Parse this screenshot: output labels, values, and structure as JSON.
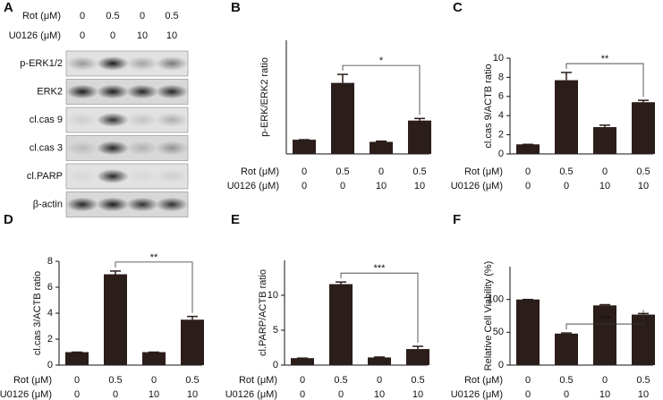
{
  "blot": {
    "panel": "A",
    "conditions": [
      {
        "name": "Rot (μM)",
        "values": [
          "0",
          "0.5",
          "0",
          "0.5"
        ]
      },
      {
        "name": "U0126 (μM)",
        "values": [
          "0",
          "0",
          "10",
          "10"
        ]
      }
    ],
    "rows": [
      "p-ERK1/2",
      "ERK2",
      "cl.cas 9",
      "cl.cas 3",
      "cl.PARP",
      "β-actin"
    ]
  },
  "chart_data": [
    {
      "type": "bar",
      "panel": "B",
      "ylabel": "p-ERK/ERK2 ratio",
      "color": "#2b1d1a",
      "conditions": [
        {
          "name": "Rot (μM)",
          "values": [
            "0",
            "0.5",
            "0",
            "0.5"
          ]
        },
        {
          "name": "U0126 (μM)",
          "values": [
            "0",
            "0",
            "10",
            "10"
          ]
        }
      ],
      "values": [
        1,
        5.0,
        0.85,
        2.35
      ],
      "errors": [
        0,
        0.6,
        0.05,
        0.15
      ],
      "ylim": [
        0,
        8
      ],
      "yticks": [],
      "significance": "*"
    },
    {
      "type": "bar",
      "panel": "C",
      "ylabel": "cl.cas 9/ACTB ratio",
      "color": "#2b1d1a",
      "conditions": [
        {
          "name": "Rot (μM)",
          "values": [
            "0",
            "0.5",
            "0",
            "0.5"
          ]
        },
        {
          "name": "U0126 (μM)",
          "values": [
            "0",
            "0",
            "10",
            "10"
          ]
        }
      ],
      "values": [
        1,
        7.7,
        2.8,
        5.4
      ],
      "errors": [
        0,
        0.8,
        0.2,
        0.2
      ],
      "ylim": [
        0,
        10
      ],
      "yticks": [
        0,
        2,
        4,
        6,
        8,
        10
      ],
      "significance": "**"
    },
    {
      "type": "bar",
      "panel": "D",
      "ylabel": "cl.cas 3/ACTB ratio",
      "color": "#2b1d1a",
      "conditions": [
        {
          "name": "Rot (μM)",
          "values": [
            "0",
            "0.5",
            "0",
            "0.5"
          ]
        },
        {
          "name": "U0126 (μM)",
          "values": [
            "0",
            "0",
            "10",
            "10"
          ]
        }
      ],
      "values": [
        1,
        7.0,
        1.0,
        3.5
      ],
      "errors": [
        0,
        0.25,
        0,
        0.25
      ],
      "ylim": [
        0,
        8
      ],
      "yticks": [
        0,
        2,
        4,
        6,
        8
      ],
      "significance": "**"
    },
    {
      "type": "bar",
      "panel": "E",
      "ylabel": "cl.PARP/ACTB ratio",
      "color": "#2b1d1a",
      "conditions": [
        {
          "name": "Rot (μM)",
          "values": [
            "0",
            "0.5",
            "0",
            "0.5"
          ]
        },
        {
          "name": "U0126 (μM)",
          "values": [
            "0",
            "0",
            "10",
            "10"
          ]
        }
      ],
      "values": [
        1,
        11.6,
        1.1,
        2.3
      ],
      "errors": [
        0,
        0.3,
        0.05,
        0.4
      ],
      "ylim": [
        0,
        15
      ],
      "yticks": [
        0,
        5,
        10
      ],
      "significance": "***"
    },
    {
      "type": "bar",
      "panel": "F",
      "ylabel": "Relative Cell Viability (%)",
      "color": "#2b1d1a",
      "conditions": [
        {
          "name": "Rot (μM)",
          "values": [
            "0",
            "0.5",
            "0",
            "0.5"
          ]
        },
        {
          "name": "U0126 (μM)",
          "values": [
            "0",
            "0",
            "10",
            "10"
          ]
        }
      ],
      "values": [
        100,
        48,
        91,
        77
      ],
      "errors": [
        0,
        1,
        1,
        1.5
      ],
      "ylim": [
        0,
        150
      ],
      "yticks": [
        0,
        50,
        100
      ],
      "significance": "***"
    }
  ]
}
